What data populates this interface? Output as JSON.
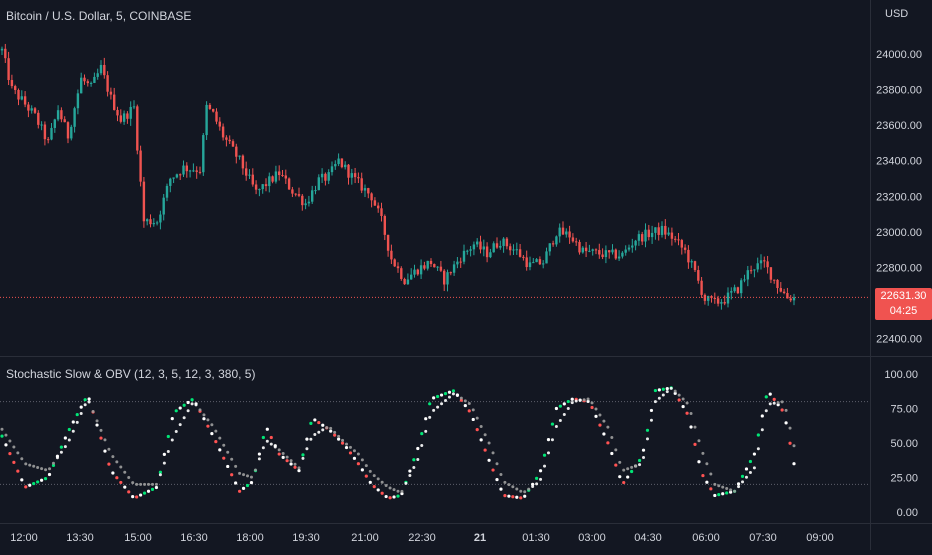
{
  "header": {
    "title": "Bitcoin / U.S. Dollar, 5, COINBASE",
    "currency": "USD"
  },
  "indicator": {
    "title": "Stochastic Slow & OBV (12, 3, 5, 12, 3, 380, 5)",
    "y_ticks": [
      "100.00",
      "75.00",
      "50.00",
      "25.00",
      "0.00"
    ],
    "levels": [
      80,
      20
    ]
  },
  "price_tag": {
    "price": "22631.30",
    "countdown": "04:25"
  },
  "colors": {
    "background": "#131722",
    "up": "#26a69a",
    "down": "#ef5350",
    "grid": "#2a2e39",
    "text": "#d1d4dc",
    "stoch_up": "#00e676",
    "stoch_down": "#ff5252",
    "stoch_k": "#ffffff",
    "stoch_d": "#9e9e9e"
  },
  "chart_data": [
    {
      "type": "candlestick",
      "title": "Bitcoin / U.S. Dollar, 5, COINBASE",
      "y_ticks": [
        "24000.00",
        "23800.00",
        "23600.00",
        "23400.00",
        "23200.00",
        "23000.00",
        "22800.00",
        "22400.00"
      ],
      "x_ticks": [
        "12:00",
        "13:30",
        "15:00",
        "16:30",
        "18:00",
        "19:30",
        "21:00",
        "22:30",
        "21",
        "01:30",
        "03:00",
        "04:30",
        "06:00",
        "07:30",
        "09:00"
      ],
      "ylim": [
        22300,
        24160
      ],
      "last_price": 22631.3,
      "close_path": [
        [
          0,
          24020
        ],
        [
          3,
          23800
        ],
        [
          6,
          23740
        ],
        [
          10,
          23650
        ],
        [
          14,
          23500
        ],
        [
          17,
          23690
        ],
        [
          20,
          23540
        ],
        [
          24,
          23860
        ],
        [
          27,
          23810
        ],
        [
          30,
          23920
        ],
        [
          33,
          23750
        ],
        [
          36,
          23630
        ],
        [
          40,
          23700
        ],
        [
          43,
          23060
        ],
        [
          47,
          23060
        ],
        [
          51,
          23300
        ],
        [
          55,
          23360
        ],
        [
          60,
          23350
        ],
        [
          62,
          23700
        ],
        [
          64,
          23660
        ],
        [
          67,
          23540
        ],
        [
          72,
          23400
        ],
        [
          77,
          23220
        ],
        [
          80,
          23270
        ],
        [
          84,
          23330
        ],
        [
          88,
          23230
        ],
        [
          92,
          23160
        ],
        [
          96,
          23290
        ],
        [
          99,
          23310
        ],
        [
          102,
          23400
        ],
        [
          107,
          23290
        ],
        [
          112,
          23200
        ],
        [
          115,
          23060
        ],
        [
          118,
          22850
        ],
        [
          122,
          22730
        ],
        [
          126,
          22790
        ],
        [
          130,
          22830
        ],
        [
          134,
          22730
        ],
        [
          139,
          22860
        ],
        [
          143,
          22930
        ],
        [
          147,
          22880
        ],
        [
          151,
          22950
        ],
        [
          156,
          22890
        ],
        [
          160,
          22810
        ],
        [
          164,
          22830
        ],
        [
          168,
          23000
        ],
        [
          172,
          22980
        ],
        [
          176,
          22890
        ],
        [
          180,
          22880
        ],
        [
          184,
          22870
        ],
        [
          188,
          22870
        ],
        [
          192,
          22960
        ],
        [
          196,
          22990
        ],
        [
          200,
          23010
        ],
        [
          203,
          22970
        ],
        [
          207,
          22890
        ],
        [
          210,
          22770
        ],
        [
          213,
          22620
        ],
        [
          216,
          22600
        ],
        [
          219,
          22620
        ],
        [
          223,
          22680
        ],
        [
          227,
          22800
        ],
        [
          231,
          22820
        ],
        [
          235,
          22700
        ],
        [
          238,
          22631.3
        ]
      ]
    },
    {
      "type": "scatter",
      "title": "Stochastic Slow & OBV (12, 3, 5, 12, 3, 380, 5)",
      "ylim": [
        -5,
        106
      ],
      "y_ticks": [
        100,
        75,
        50,
        25,
        0
      ],
      "series": [
        {
          "role": "k",
          "path": [
            [
              0,
              55
            ],
            [
              7,
              18
            ],
            [
              14,
              25
            ],
            [
              20,
              58
            ],
            [
              26,
              85
            ],
            [
              33,
              30
            ],
            [
              40,
              10
            ],
            [
              47,
              18
            ],
            [
              52,
              72
            ],
            [
              58,
              82
            ],
            [
              64,
              55
            ],
            [
              72,
              15
            ],
            [
              76,
              22
            ],
            [
              80,
              62
            ],
            [
              84,
              42
            ],
            [
              90,
              30
            ],
            [
              94,
              68
            ],
            [
              99,
              60
            ],
            [
              104,
              48
            ],
            [
              108,
              35
            ],
            [
              112,
              20
            ],
            [
              117,
              10
            ],
            [
              121,
              12
            ],
            [
              126,
              46
            ],
            [
              130,
              82
            ],
            [
              137,
              88
            ],
            [
              142,
              72
            ],
            [
              148,
              35
            ],
            [
              152,
              12
            ],
            [
              158,
              10
            ],
            [
              163,
              28
            ],
            [
              168,
              75
            ],
            [
              173,
              82
            ],
            [
              178,
              80
            ],
            [
              184,
              48
            ],
            [
              188,
              20
            ],
            [
              194,
              40
            ],
            [
              198,
              88
            ],
            [
              203,
              90
            ],
            [
              208,
              70
            ],
            [
              212,
              28
            ],
            [
              216,
              12
            ],
            [
              222,
              15
            ],
            [
              228,
              42
            ],
            [
              232,
              88
            ],
            [
              237,
              72
            ],
            [
              240,
              35
            ]
          ]
        },
        {
          "role": "d",
          "path": [
            [
              0,
              60
            ],
            [
              7,
              35
            ],
            [
              14,
              30
            ],
            [
              20,
              50
            ],
            [
              26,
              82
            ],
            [
              33,
              42
            ],
            [
              40,
              20
            ],
            [
              47,
              20
            ],
            [
              52,
              55
            ],
            [
              58,
              80
            ],
            [
              64,
              62
            ],
            [
              72,
              28
            ],
            [
              76,
              25
            ],
            [
              80,
              52
            ],
            [
              84,
              45
            ],
            [
              90,
              32
            ],
            [
              94,
              55
            ],
            [
              99,
              62
            ],
            [
              104,
              50
            ],
            [
              108,
              42
            ],
            [
              112,
              28
            ],
            [
              117,
              18
            ],
            [
              121,
              14
            ],
            [
              126,
              38
            ],
            [
              130,
              72
            ],
            [
              137,
              86
            ],
            [
              142,
              78
            ],
            [
              148,
              48
            ],
            [
              152,
              22
            ],
            [
              158,
              14
            ],
            [
              163,
              22
            ],
            [
              168,
              62
            ],
            [
              173,
              80
            ],
            [
              178,
              82
            ],
            [
              184,
              60
            ],
            [
              188,
              30
            ],
            [
              194,
              35
            ],
            [
              198,
              80
            ],
            [
              203,
              90
            ],
            [
              208,
              78
            ],
            [
              212,
              45
            ],
            [
              216,
              20
            ],
            [
              222,
              15
            ],
            [
              228,
              32
            ],
            [
              232,
              78
            ],
            [
              237,
              80
            ],
            [
              240,
              48
            ]
          ]
        }
      ]
    }
  ]
}
